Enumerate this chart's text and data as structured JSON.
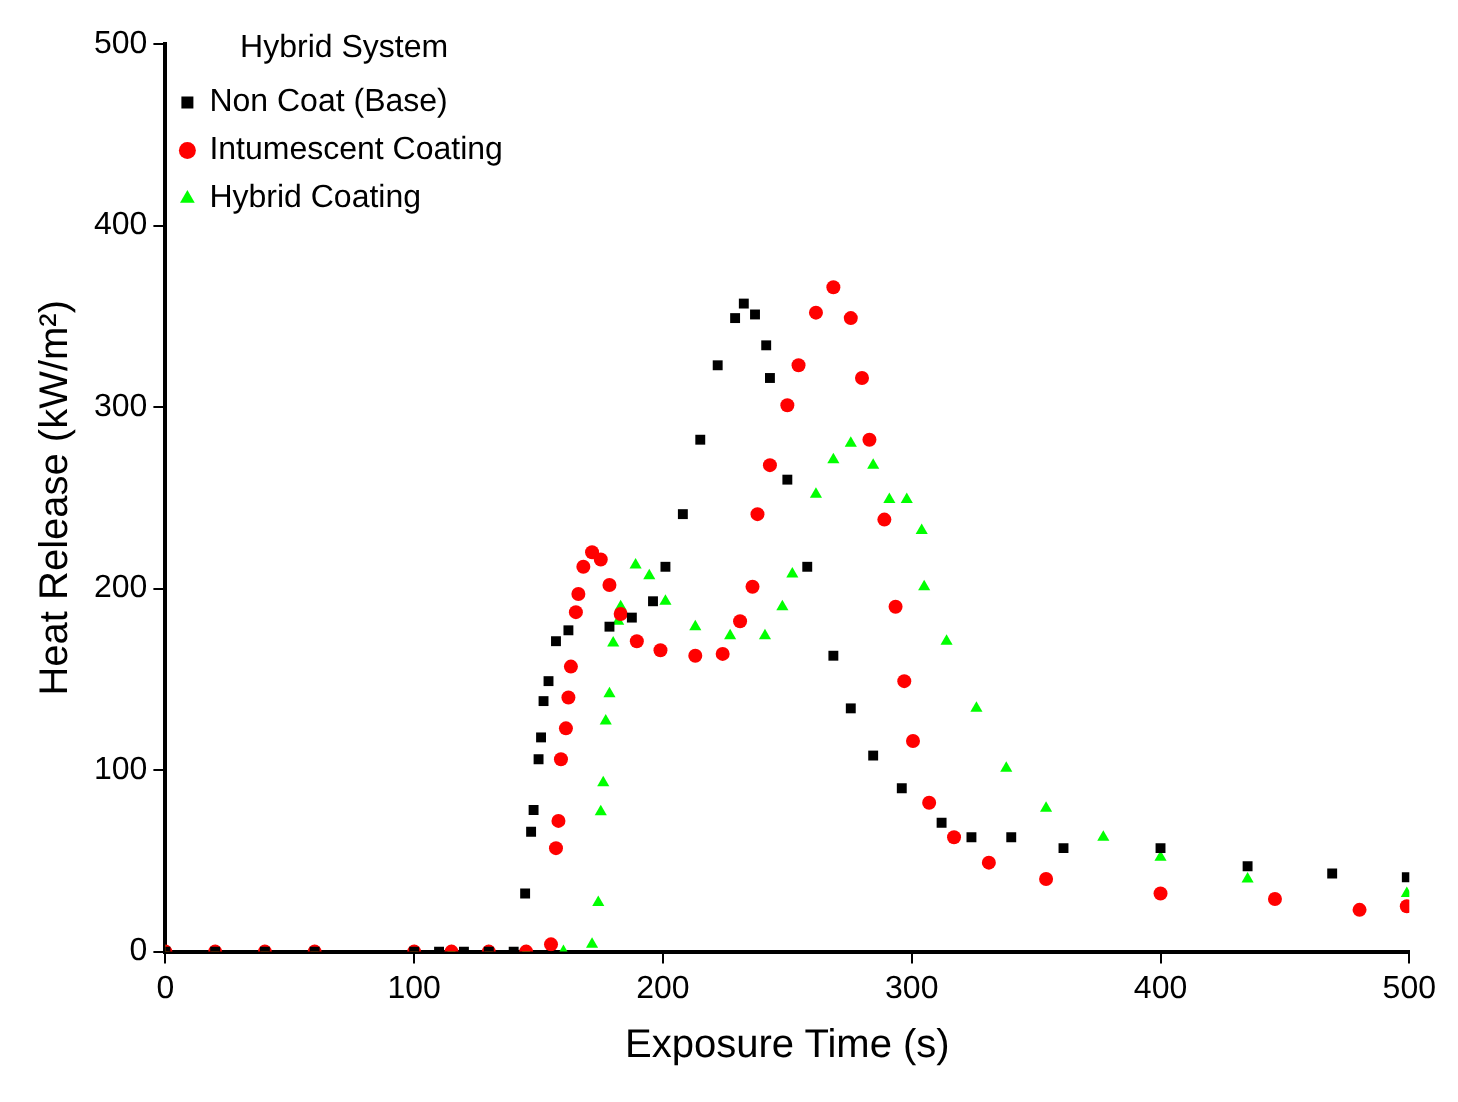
{
  "chart_data": {
    "type": "scatter",
    "xlabel": "Exposure Time (s)",
    "ylabel": "Heat Release (kW/m²)",
    "legend_title": "Hybrid System",
    "legend": "top left",
    "grid": false,
    "xlim": [
      0,
      500
    ],
    "xticks": [
      0,
      100,
      200,
      300,
      400,
      500
    ],
    "ylim": [
      0,
      500
    ],
    "yticks": [
      0,
      100,
      200,
      300,
      400,
      500
    ],
    "series": [
      {
        "name": "Non Coat (Base)",
        "color": "#000000",
        "marker": "square",
        "x": [
          0,
          20,
          40,
          60,
          100,
          110,
          120,
          130,
          140,
          144.6,
          147,
          148,
          150,
          151,
          152,
          154,
          157,
          162,
          178.5,
          187.5,
          196,
          201,
          208,
          215,
          222,
          229,
          232.5,
          237,
          241.5,
          243,
          250,
          258,
          268.5,
          275.5,
          284.5,
          296,
          312,
          324,
          340,
          361,
          400,
          435,
          469,
          499
        ],
        "values": [
          0,
          0,
          0,
          0,
          0,
          0,
          0,
          0,
          0,
          32,
          66,
          78,
          106,
          118,
          138,
          149,
          171,
          177,
          179,
          184,
          193,
          212,
          241,
          282,
          323,
          349,
          357,
          351,
          334,
          316,
          260,
          212,
          163,
          134,
          108,
          90,
          71,
          63,
          63,
          57,
          57,
          47,
          43,
          41
        ]
      },
      {
        "name": "Intumescent Coating",
        "color": "#ff0000",
        "marker": "circle",
        "x": [
          0,
          20,
          40,
          60,
          100,
          115,
          130,
          145,
          155,
          157,
          158,
          159,
          161,
          162,
          163,
          165,
          166,
          168,
          171.5,
          175,
          178.5,
          183,
          189.5,
          199,
          213,
          224,
          231,
          236,
          238,
          243,
          250,
          254.5,
          261.5,
          268.5,
          275.5,
          280,
          283,
          289,
          293.5,
          297,
          300.5,
          307,
          317,
          331,
          354,
          400,
          446,
          480,
          499
        ],
        "values": [
          0,
          0,
          0,
          0,
          0,
          0,
          0,
          0,
          4,
          57,
          72,
          106,
          123,
          140,
          157,
          187,
          197,
          212,
          220,
          216,
          202,
          186,
          171,
          166,
          163,
          164,
          182,
          201,
          241,
          268,
          301,
          323,
          352,
          366,
          349,
          316,
          282,
          238,
          190,
          149,
          116,
          82,
          63,
          49,
          40,
          32,
          29,
          23,
          25
        ]
      },
      {
        "name": "Hybrid Coating",
        "color": "#00ff00",
        "marker": "triangle",
        "x": [
          0,
          20,
          40,
          60,
          100,
          115,
          130,
          145,
          160,
          171.5,
          174,
          175,
          176,
          177,
          178.5,
          180,
          182,
          183,
          189,
          194.5,
          201,
          213,
          227,
          241,
          248,
          252,
          261.5,
          268.5,
          275.5,
          284.5,
          291,
          298,
          304,
          305,
          314,
          326,
          338,
          354,
          377,
          400,
          435,
          499
        ],
        "values": [
          0,
          0,
          0,
          0,
          0,
          0,
          0,
          0,
          0,
          4,
          27,
          77,
          93,
          127,
          142,
          170,
          182,
          190,
          213,
          207,
          193,
          179,
          174,
          174,
          190,
          208,
          252,
          271,
          280,
          268,
          249,
          249,
          232,
          201,
          171,
          134,
          101,
          79,
          63,
          52,
          40,
          32
        ]
      }
    ]
  }
}
